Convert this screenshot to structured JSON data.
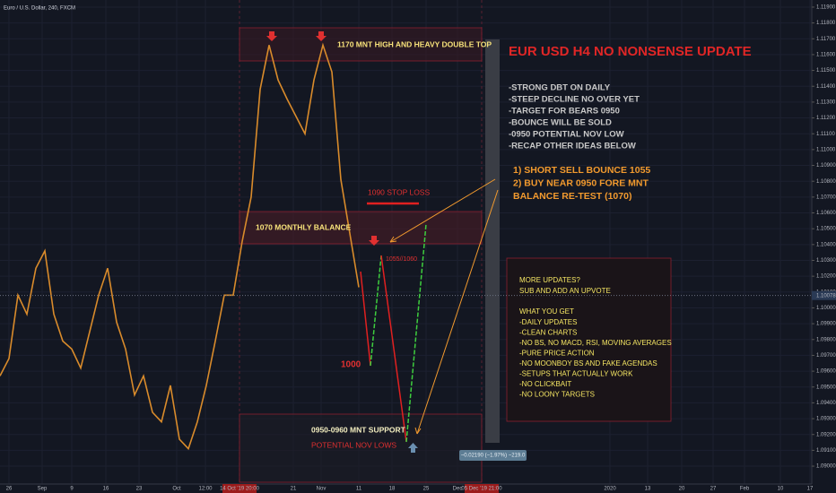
{
  "chart_data": {
    "type": "line",
    "x": [
      0,
      1,
      2,
      3,
      4,
      5,
      6,
      7,
      8,
      9,
      10,
      11,
      12,
      13,
      14,
      15,
      16,
      17,
      18,
      19,
      20,
      21,
      22,
      23,
      24,
      25,
      26,
      27,
      28,
      29,
      30,
      31,
      32,
      33,
      34,
      35,
      36,
      37,
      38,
      39,
      40
    ],
    "series": [
      {
        "name": "Euro / U.S. Dollar",
        "color": "#d98b2b",
        "values": [
          1.0957,
          1.0968,
          1.1008,
          1.0996,
          1.1025,
          1.1036,
          1.0996,
          1.0979,
          1.0974,
          1.0962,
          1.0985,
          1.1008,
          1.1025,
          1.0991,
          1.0974,
          1.0945,
          1.0957,
          1.0934,
          1.0928,
          1.0951,
          1.0917,
          1.0911,
          1.0928,
          1.0951,
          1.0979,
          1.1008,
          1.1008,
          1.1042,
          1.107,
          1.1138,
          1.1166,
          1.1144,
          1.1132,
          1.1121,
          1.111,
          1.1144,
          1.1166,
          1.1149,
          1.1081,
          1.1047,
          1.1013
        ]
      }
    ],
    "xlim": [
      0,
      90.5
    ],
    "ylim": [
      1.08887,
      1.11945
    ],
    "xticks": [
      {
        "value": 1,
        "label": "26"
      },
      {
        "value": 4.7,
        "label": "Sep"
      },
      {
        "value": 8,
        "label": "9"
      },
      {
        "value": 11.8,
        "label": "16"
      },
      {
        "value": 15.5,
        "label": "23"
      },
      {
        "value": 19.7,
        "label": "Oct"
      },
      {
        "value": 22.9,
        "label": "12:00"
      },
      {
        "value": 32.7,
        "label": "21"
      },
      {
        "value": 35.8,
        "label": "Nov"
      },
      {
        "value": 40,
        "label": "11"
      },
      {
        "value": 43.7,
        "label": "18"
      },
      {
        "value": 47.5,
        "label": "25"
      },
      {
        "value": 51,
        "label": "Dec"
      },
      {
        "value": 68,
        "label": "2020"
      },
      {
        "value": 72.2,
        "label": "13"
      },
      {
        "value": 76,
        "label": "20"
      },
      {
        "value": 79.5,
        "label": "27"
      },
      {
        "value": 83,
        "label": "Feb"
      },
      {
        "value": 87,
        "label": "10"
      },
      {
        "value": 90.3,
        "label": "17"
      }
    ],
    "time_markers": [
      {
        "value": 26.7,
        "label": "14 Oct '19  20:00"
      },
      {
        "value": 53.7,
        "label": "05 Dec '19  21:00"
      }
    ],
    "yticks": [
      {
        "value": 1.09,
        "label": "1.09000"
      },
      {
        "value": 1.091,
        "label": "1.09100"
      },
      {
        "value": 1.092,
        "label": "1.09200"
      },
      {
        "value": 1.093,
        "label": "1.09300"
      },
      {
        "value": 1.094,
        "label": "1.09400"
      },
      {
        "value": 1.095,
        "label": "1.09500"
      },
      {
        "value": 1.096,
        "label": "1.09600"
      },
      {
        "value": 1.097,
        "label": "1.09700"
      },
      {
        "value": 1.098,
        "label": "1.09800"
      },
      {
        "value": 1.099,
        "label": "1.09900"
      },
      {
        "value": 1.1,
        "label": "1.10000"
      },
      {
        "value": 1.101,
        "label": "1.10100"
      },
      {
        "value": 1.102,
        "label": "1.10200"
      },
      {
        "value": 1.103,
        "label": "1.10300"
      },
      {
        "value": 1.104,
        "label": "1.10400"
      },
      {
        "value": 1.105,
        "label": "1.10500"
      },
      {
        "value": 1.106,
        "label": "1.10600"
      },
      {
        "value": 1.107,
        "label": "1.10700"
      },
      {
        "value": 1.108,
        "label": "1.10800"
      },
      {
        "value": 1.109,
        "label": "1.10900"
      },
      {
        "value": 1.11,
        "label": "1.11000"
      },
      {
        "value": 1.111,
        "label": "1.11100"
      },
      {
        "value": 1.112,
        "label": "1.11200"
      },
      {
        "value": 1.113,
        "label": "1.11300"
      },
      {
        "value": 1.114,
        "label": "1.11400"
      },
      {
        "value": 1.115,
        "label": "1.11500"
      },
      {
        "value": 1.116,
        "label": "1.11600"
      },
      {
        "value": 1.117,
        "label": "1.11700"
      },
      {
        "value": 1.118,
        "label": "1.11800"
      },
      {
        "value": 1.119,
        "label": "1.11900"
      }
    ],
    "current_price": 1.10078,
    "grid": true
  },
  "annotations": {
    "symbol": "Euro / U.S. Dollar, 240, FXCM",
    "top_zone": "1170 MNT HIGH AND HEAVY DOUBLE TOP",
    "balance_zone": "1070 MONTHLY BALANCE",
    "stop_loss": "1090 STOP LOSS",
    "bounce_target": "1055//1060",
    "mid_target": "1000",
    "support_zone": "0950-0960 MNT SUPPORT",
    "support_note": "POTENTIAL NOV LOWS",
    "headline": "EUR USD H4 NO NONSENSE UPDATE",
    "points": [
      "-STRONG DBT ON DAILY",
      "-STEEP DECLINE NO OVER YET",
      "-TARGET FOR BEARS 0950",
      "-BOUNCE WILL BE SOLD",
      "-0950 POTENTIAL NOV LOW",
      "-RECAP OTHER IDEAS BELOW"
    ],
    "plan": [
      "1) SHORT SELL BOUNCE 1055",
      "2) BUY NEAR 0950 FORE MNT",
      "BALANCE RE-TEST (1070)"
    ],
    "promo_head": [
      "MORE UPDATES?",
      "SUB AND ADD AN UPVOTE",
      "WHAT YOU GET"
    ],
    "promo_list": [
      "-DAILY UPDATES",
      "-CLEAN CHARTS",
      "-NO BS, NO MACD, RSI, MOVING AVERAGES",
      "-PURE PRICE ACTION",
      "-NO MOONBOY BS AND FAKE AGENDAS",
      "-SETUPS THAT ACTUALLY WORK",
      "-NO CLICKBAIT",
      "-NO LOONY TARGETS"
    ],
    "change": "−0.02190 (−1.97%) −219.0"
  }
}
